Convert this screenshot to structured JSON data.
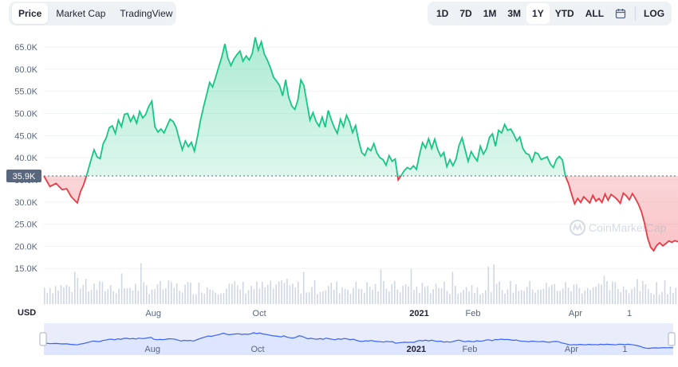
{
  "tabs": [
    {
      "label": "Price",
      "active": true
    },
    {
      "label": "Market Cap",
      "active": false
    },
    {
      "label": "TradingView",
      "active": false
    }
  ],
  "ranges": [
    {
      "label": "1D",
      "active": false
    },
    {
      "label": "7D",
      "active": false
    },
    {
      "label": "1M",
      "active": false
    },
    {
      "label": "3M",
      "active": false
    },
    {
      "label": "1Y",
      "active": true
    },
    {
      "label": "YTD",
      "active": false
    },
    {
      "label": "ALL",
      "active": false
    }
  ],
  "calendar_icon": "calendar-icon",
  "log_label": "LOG",
  "watermark": "CoinMarketCap",
  "currency_label": "USD",
  "colors": {
    "up": "#16c784",
    "down": "#ea3943",
    "grid": "#eff2f5",
    "navigator_line": "#3861fb",
    "navigator_fill": "#dde5ff"
  },
  "chart_data": {
    "type": "area",
    "yticks": [
      "65.0K",
      "60.0K",
      "55.0K",
      "50.0K",
      "45.0K",
      "40.0K",
      "35.0K",
      "30.0K",
      "25.0K",
      "20.0K",
      "15.0K"
    ],
    "ylim": [
      10000,
      67000
    ],
    "reference_value": 35900,
    "reference_label": "35.9K",
    "xticks": [
      {
        "label": "Aug",
        "day": 63,
        "bold": false
      },
      {
        "label": "Oct",
        "day": 124,
        "bold": false
      },
      {
        "label": "2021",
        "day": 216,
        "bold": true
      },
      {
        "label": "Feb",
        "day": 247,
        "bold": false
      },
      {
        "label": "Apr",
        "day": 306,
        "bold": false
      },
      {
        "label": "1",
        "day": 337,
        "bold": false
      }
    ],
    "x_days_total": 365,
    "prices": [
      [
        0,
        35900
      ],
      [
        4,
        33500
      ],
      [
        8,
        34200
      ],
      [
        12,
        32800
      ],
      [
        15,
        33000
      ],
      [
        18,
        31200
      ],
      [
        20,
        30500
      ],
      [
        22,
        29800
      ],
      [
        24,
        32300
      ],
      [
        26,
        33800
      ],
      [
        28,
        35900
      ],
      [
        31,
        39500
      ],
      [
        33,
        41800
      ],
      [
        35,
        40200
      ],
      [
        37,
        39800
      ],
      [
        39,
        43200
      ],
      [
        41,
        44500
      ],
      [
        43,
        46800
      ],
      [
        45,
        47200
      ],
      [
        47,
        45500
      ],
      [
        49,
        48500
      ],
      [
        51,
        47000
      ],
      [
        53,
        49800
      ],
      [
        55,
        50000
      ],
      [
        57,
        48200
      ],
      [
        59,
        49500
      ],
      [
        61,
        47800
      ],
      [
        63,
        50500
      ],
      [
        65,
        49000
      ],
      [
        67,
        49800
      ],
      [
        69,
        51600
      ],
      [
        71,
        52800
      ],
      [
        73,
        47000
      ],
      [
        75,
        45800
      ],
      [
        77,
        46500
      ],
      [
        79,
        45600
      ],
      [
        81,
        47200
      ],
      [
        83,
        48700
      ],
      [
        85,
        48200
      ],
      [
        87,
        46800
      ],
      [
        89,
        44200
      ],
      [
        91,
        41800
      ],
      [
        93,
        43800
      ],
      [
        95,
        42500
      ],
      [
        97,
        43500
      ],
      [
        99,
        41500
      ],
      [
        101,
        44800
      ],
      [
        103,
        48500
      ],
      [
        105,
        51500
      ],
      [
        107,
        54200
      ],
      [
        109,
        57000
      ],
      [
        111,
        56000
      ],
      [
        113,
        58200
      ],
      [
        115,
        60500
      ],
      [
        117,
        62800
      ],
      [
        119,
        65700
      ],
      [
        121,
        62500
      ],
      [
        123,
        60800
      ],
      [
        125,
        62300
      ],
      [
        127,
        63300
      ],
      [
        129,
        64100
      ],
      [
        131,
        61800
      ],
      [
        133,
        63000
      ],
      [
        135,
        62100
      ],
      [
        137,
        63500
      ],
      [
        139,
        67200
      ],
      [
        141,
        64300
      ],
      [
        143,
        66200
      ],
      [
        145,
        63400
      ],
      [
        147,
        62000
      ],
      [
        149,
        60300
      ],
      [
        151,
        58200
      ],
      [
        153,
        57300
      ],
      [
        155,
        56300
      ],
      [
        157,
        54000
      ],
      [
        159,
        57600
      ],
      [
        161,
        53700
      ],
      [
        163,
        51700
      ],
      [
        165,
        50900
      ],
      [
        167,
        53000
      ],
      [
        169,
        57600
      ],
      [
        171,
        56300
      ],
      [
        173,
        52400
      ],
      [
        175,
        48500
      ],
      [
        177,
        50200
      ],
      [
        179,
        48200
      ],
      [
        181,
        47100
      ],
      [
        183,
        49200
      ],
      [
        185,
        46900
      ],
      [
        187,
        50700
      ],
      [
        189,
        48600
      ],
      [
        191,
        46800
      ],
      [
        193,
        45500
      ],
      [
        195,
        48700
      ],
      [
        197,
        47000
      ],
      [
        199,
        49600
      ],
      [
        201,
        48100
      ],
      [
        203,
        45700
      ],
      [
        205,
        47300
      ],
      [
        207,
        43900
      ],
      [
        209,
        41200
      ],
      [
        211,
        40500
      ],
      [
        213,
        42200
      ],
      [
        215,
        41600
      ],
      [
        217,
        43200
      ],
      [
        219,
        41100
      ],
      [
        221,
        40000
      ],
      [
        223,
        39600
      ],
      [
        225,
        38300
      ],
      [
        227,
        40500
      ],
      [
        229,
        39200
      ],
      [
        231,
        39700
      ],
      [
        233,
        35000
      ],
      [
        235,
        36000
      ],
      [
        237,
        37100
      ],
      [
        239,
        37800
      ],
      [
        241,
        37400
      ],
      [
        243,
        38200
      ],
      [
        245,
        37400
      ],
      [
        247,
        40700
      ],
      [
        249,
        43400
      ],
      [
        251,
        42200
      ],
      [
        253,
        44300
      ],
      [
        255,
        42100
      ],
      [
        257,
        44200
      ],
      [
        259,
        41800
      ],
      [
        261,
        40300
      ],
      [
        263,
        41200
      ],
      [
        265,
        38000
      ],
      [
        267,
        39600
      ],
      [
        269,
        38200
      ],
      [
        271,
        39700
      ],
      [
        273,
        42800
      ],
      [
        275,
        44500
      ],
      [
        277,
        41800
      ],
      [
        279,
        39200
      ],
      [
        281,
        41400
      ],
      [
        283,
        40200
      ],
      [
        285,
        39300
      ],
      [
        287,
        42600
      ],
      [
        289,
        40800
      ],
      [
        291,
        42000
      ],
      [
        293,
        44600
      ],
      [
        295,
        45400
      ],
      [
        297,
        42600
      ],
      [
        299,
        46200
      ],
      [
        301,
        45600
      ],
      [
        303,
        47500
      ],
      [
        305,
        46200
      ],
      [
        307,
        46500
      ],
      [
        309,
        45300
      ],
      [
        311,
        43800
      ],
      [
        313,
        44700
      ],
      [
        315,
        42100
      ],
      [
        317,
        41000
      ],
      [
        319,
        40700
      ],
      [
        321,
        39100
      ],
      [
        323,
        41200
      ],
      [
        325,
        40900
      ],
      [
        327,
        39600
      ],
      [
        329,
        39900
      ],
      [
        331,
        40200
      ],
      [
        333,
        38600
      ],
      [
        335,
        37800
      ],
      [
        337,
        39600
      ],
      [
        339,
        40300
      ],
      [
        341,
        39500
      ],
      [
        343,
        35800
      ],
      [
        345,
        34200
      ],
      [
        347,
        31800
      ],
      [
        349,
        29600
      ],
      [
        351,
        30800
      ],
      [
        353,
        29900
      ],
      [
        355,
        31200
      ],
      [
        357,
        30500
      ],
      [
        359,
        29800
      ],
      [
        361,
        31500
      ],
      [
        363,
        30200
      ],
      [
        365,
        30800
      ],
      [
        367,
        29900
      ],
      [
        369,
        31800
      ],
      [
        371,
        30400
      ],
      [
        373,
        31700
      ],
      [
        375,
        31200
      ],
      [
        377,
        30600
      ],
      [
        379,
        29700
      ],
      [
        381,
        32000
      ],
      [
        383,
        31400
      ],
      [
        385,
        30500
      ],
      [
        387,
        31900
      ],
      [
        389,
        30800
      ],
      [
        391,
        29500
      ],
      [
        393,
        27800
      ],
      [
        395,
        25200
      ],
      [
        397,
        21900
      ],
      [
        399,
        19800
      ],
      [
        401,
        19000
      ],
      [
        403,
        20200
      ],
      [
        405,
        20800
      ],
      [
        407,
        20100
      ],
      [
        409,
        20600
      ],
      [
        411,
        21200
      ],
      [
        413,
        20900
      ],
      [
        415,
        21300
      ],
      [
        417,
        21000
      ]
    ],
    "volume_bars": 230,
    "navigator": true
  }
}
